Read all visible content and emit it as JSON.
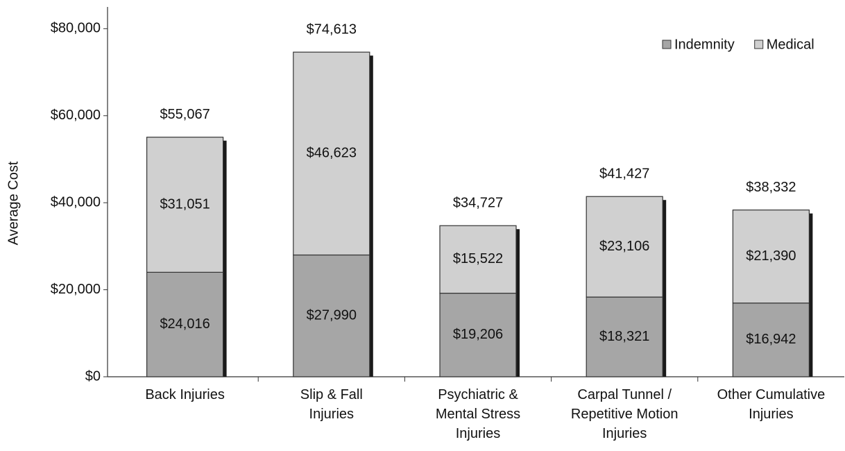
{
  "chart_data": {
    "type": "stacked_bar",
    "ylabel": "Average Cost",
    "categories": [
      "Back Injuries",
      "Slip & Fall\nInjuries",
      "Psychiatric &\nMental Stress\nInjuries",
      "Carpal Tunnel /\nRepetitive Motion\nInjuries",
      "Other Cumulative\nInjuries"
    ],
    "series": [
      {
        "name": "Indemnity",
        "color": "#a6a6a6",
        "values": [
          24016,
          27990,
          19206,
          18321,
          16942
        ],
        "value_labels": [
          "$24,016",
          "$27,990",
          "$19,206",
          "$18,321",
          "$16,942"
        ]
      },
      {
        "name": "Medical",
        "color": "#d0d0d0",
        "values": [
          31051,
          46623,
          15522,
          23106,
          21390
        ],
        "value_labels": [
          "$31,051",
          "$46,623",
          "$15,522",
          "$23,106",
          "$21,390"
        ]
      }
    ],
    "totals": [
      55067,
      74613,
      34727,
      41427,
      38332
    ],
    "total_labels": [
      "$55,067",
      "$74,613",
      "$34,727",
      "$41,427",
      "$38,332"
    ],
    "ylim": [
      0,
      85000
    ],
    "yticks": [
      {
        "value": 0,
        "label": "$0"
      },
      {
        "value": 20000,
        "label": "$20,000"
      },
      {
        "value": 40000,
        "label": "$40,000"
      },
      {
        "value": 60000,
        "label": "$60,000"
      },
      {
        "value": 80000,
        "label": "$80,000"
      }
    ],
    "legend": "top-right"
  }
}
